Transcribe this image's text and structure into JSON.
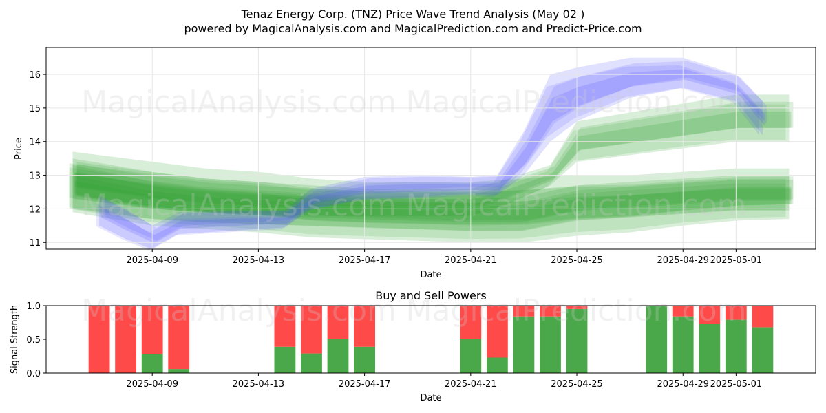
{
  "header": {
    "title": "Tenaz Energy Corp. (TNZ) Price Wave Trend Analysis (May 02 )",
    "subtitle": "powered by MagicalAnalysis.com and MagicalPrediction.com and Predict-Price.com"
  },
  "watermarks": [
    "MagicalAnalysis.com",
    "MagicalPrediction.com"
  ],
  "colors": {
    "green_band": "#2e9e2e",
    "blue_band": "#5555ff",
    "buy": "#4aa84a",
    "sell": "#ff4a4a"
  },
  "chart_data": [
    {
      "type": "area",
      "title": "",
      "xlabel": "Date",
      "ylabel": "Price",
      "x_ticks": [
        "2025-04-09",
        "2025-04-13",
        "2025-04-17",
        "2025-04-21",
        "2025-04-25",
        "2025-04-29",
        "2025-05-01"
      ],
      "y_ticks": [
        11,
        12,
        13,
        14,
        15,
        16
      ],
      "xlim": [
        "2025-04-05",
        "2025-05-04"
      ],
      "ylim": [
        10.8,
        16.8
      ],
      "grid": true,
      "series": [
        {
          "x": [
            "2025-04-06",
            "2025-04-09",
            "2025-04-11",
            "2025-04-13",
            "2025-04-15",
            "2025-04-17",
            "2025-04-19",
            "2025-04-21",
            "2025-04-23",
            "2025-04-25",
            "2025-04-27",
            "2025-04-29",
            "2025-05-01",
            "2025-05-03"
          ],
          "upper": [
            13.7,
            13.4,
            13.2,
            13.1,
            12.9,
            12.8,
            12.8,
            12.8,
            12.9,
            13.0,
            13.0,
            13.1,
            13.2,
            13.2
          ],
          "lower": [
            11.9,
            11.5,
            11.4,
            11.3,
            11.15,
            11.1,
            11.05,
            11.0,
            11.0,
            11.2,
            11.3,
            11.5,
            11.65,
            11.7
          ]
        },
        {
          "x": [
            "2025-04-06",
            "2025-04-09",
            "2025-04-11",
            "2025-04-13",
            "2025-04-15",
            "2025-04-17",
            "2025-04-19",
            "2025-04-21",
            "2025-04-23",
            "2025-04-25",
            "2025-04-27",
            "2025-04-29",
            "2025-05-01",
            "2025-05-03"
          ],
          "upper": [
            13.3,
            12.8,
            12.6,
            12.5,
            12.4,
            12.35,
            12.3,
            12.3,
            12.35,
            12.7,
            12.8,
            12.9,
            13.0,
            13.0
          ],
          "lower": [
            12.0,
            11.7,
            11.6,
            11.55,
            11.5,
            11.45,
            11.4,
            11.35,
            11.35,
            11.65,
            11.75,
            11.85,
            11.95,
            11.95
          ]
        },
        {
          "x": [
            "2025-04-06",
            "2025-04-09",
            "2025-04-11",
            "2025-04-13",
            "2025-04-15",
            "2025-04-17",
            "2025-04-19",
            "2025-04-21",
            "2025-04-22",
            "2025-04-24",
            "2025-04-25",
            "2025-04-28",
            "2025-05-01",
            "2025-05-03"
          ],
          "upper": [
            13.5,
            13.1,
            12.9,
            12.8,
            12.7,
            12.6,
            12.6,
            12.6,
            12.8,
            13.3,
            14.6,
            15.0,
            15.4,
            15.4
          ],
          "lower": [
            12.3,
            12.0,
            11.9,
            11.8,
            11.8,
            11.8,
            11.8,
            11.8,
            12.0,
            12.7,
            13.4,
            13.7,
            14.0,
            14.0
          ]
        },
        {
          "x": [
            "2025-04-07",
            "2025-04-08",
            "2025-04-09",
            "2025-04-10",
            "2025-04-12",
            "2025-04-14",
            "2025-04-15",
            "2025-04-17",
            "2025-04-19",
            "2025-04-21",
            "2025-04-22",
            "2025-04-23",
            "2025-04-24",
            "2025-04-25",
            "2025-04-27",
            "2025-04-29",
            "2025-05-01",
            "2025-05-02"
          ],
          "upper": [
            12.4,
            12.0,
            11.5,
            11.9,
            11.95,
            11.95,
            12.6,
            12.95,
            13.0,
            12.95,
            13.0,
            14.3,
            16.0,
            16.2,
            16.5,
            16.5,
            16.0,
            15.2
          ],
          "lower": [
            11.5,
            11.1,
            10.8,
            11.25,
            11.35,
            11.45,
            12.0,
            12.3,
            12.35,
            12.45,
            12.4,
            13.0,
            14.0,
            14.6,
            15.3,
            15.6,
            15.2,
            14.2
          ]
        }
      ]
    },
    {
      "type": "bar",
      "title": "Buy and Sell Powers",
      "xlabel": "Date",
      "ylabel": "Signal Strength",
      "x_ticks": [
        "2025-04-09",
        "2025-04-13",
        "2025-04-17",
        "2025-04-21",
        "2025-04-25",
        "2025-04-29",
        "2025-05-01"
      ],
      "y_ticks": [
        "0.0",
        "0.5",
        "1.0"
      ],
      "xlim": [
        "2025-04-05",
        "2025-05-04"
      ],
      "ylim": [
        0,
        1
      ],
      "categories": [
        "2025-04-07",
        "2025-04-08",
        "2025-04-09",
        "2025-04-10",
        "2025-04-14",
        "2025-04-15",
        "2025-04-16",
        "2025-04-17",
        "2025-04-21",
        "2025-04-22",
        "2025-04-23",
        "2025-04-24",
        "2025-04-25",
        "2025-04-28",
        "2025-04-29",
        "2025-04-30",
        "2025-05-01",
        "2025-05-02"
      ],
      "series": [
        {
          "values": [
            0.0,
            0.0,
            0.28,
            0.06,
            0.39,
            0.29,
            0.5,
            0.39,
            0.5,
            0.23,
            0.84,
            0.84,
            0.95,
            1.0,
            0.84,
            0.73,
            0.79,
            0.68
          ]
        },
        {
          "values": [
            1.0,
            1.0,
            0.72,
            0.94,
            0.61,
            0.71,
            0.5,
            0.61,
            0.5,
            0.77,
            0.16,
            0.16,
            0.05,
            0.0,
            0.16,
            0.27,
            0.21,
            0.32
          ]
        }
      ]
    }
  ]
}
